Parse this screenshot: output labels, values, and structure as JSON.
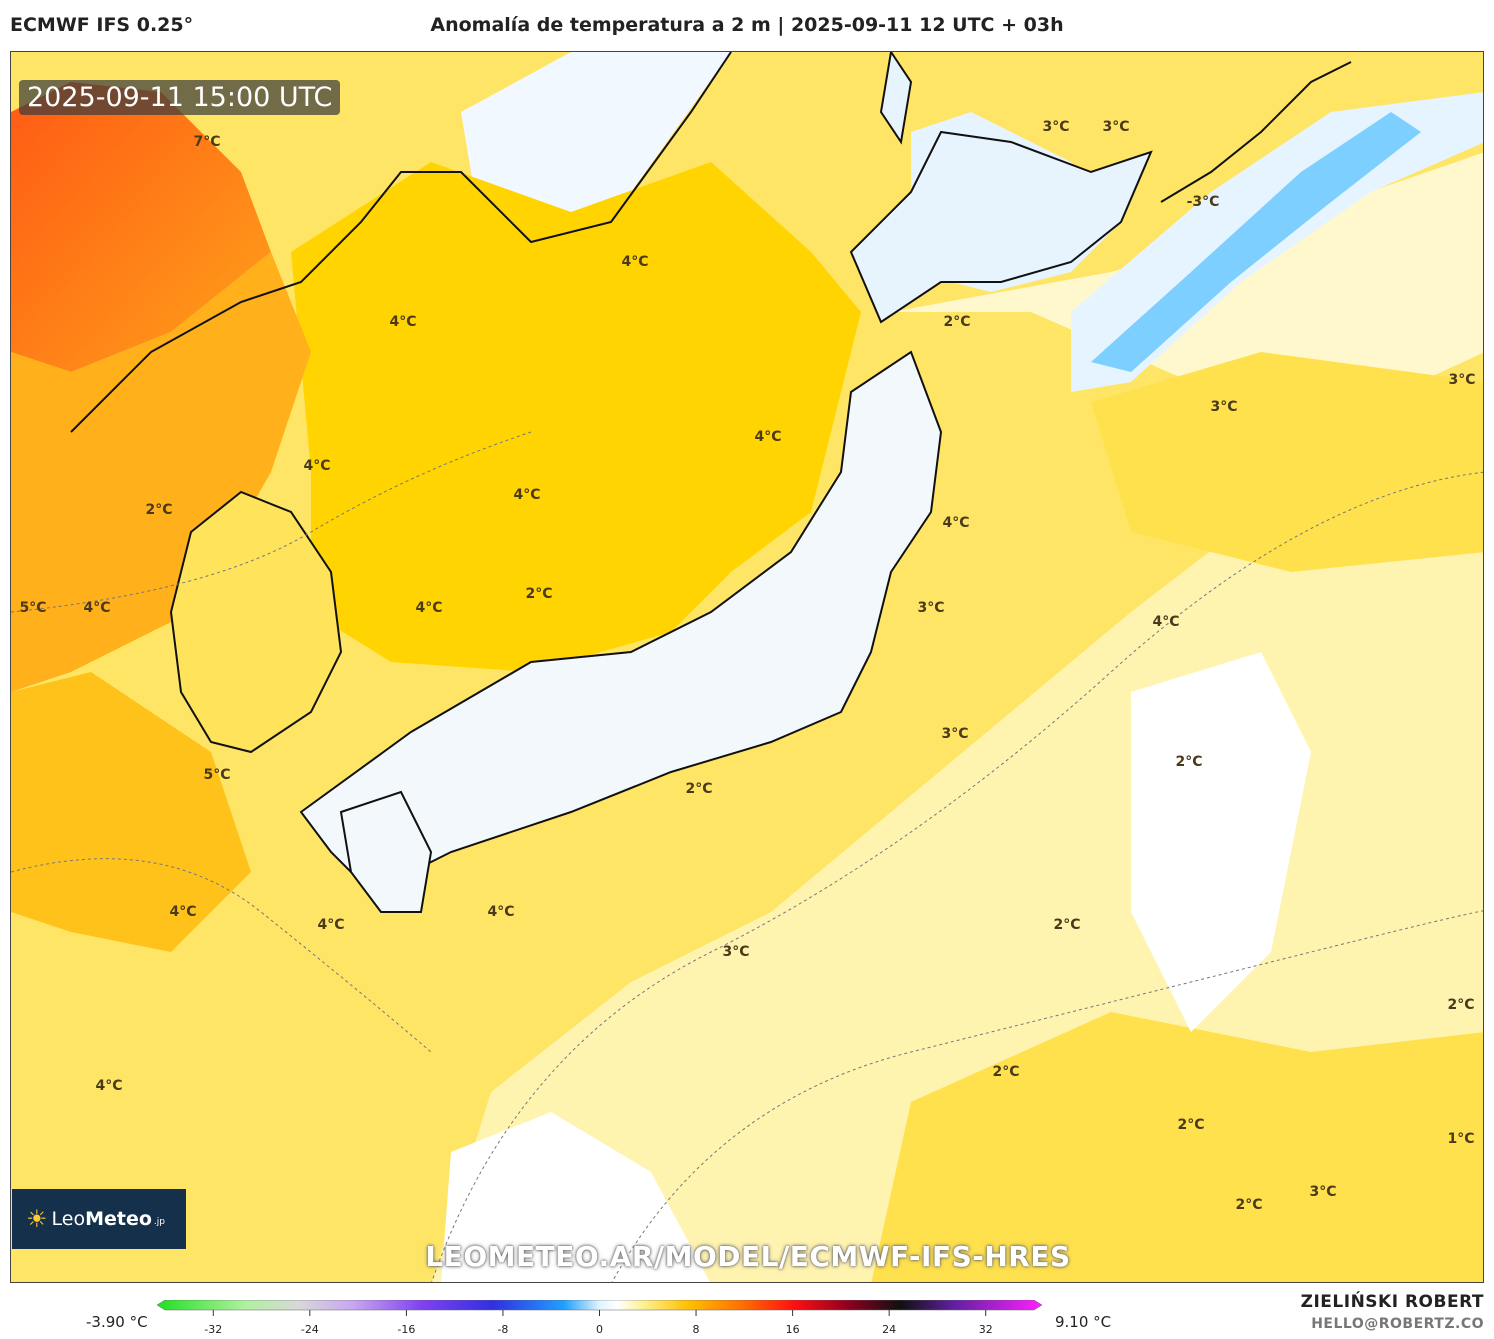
{
  "header": {
    "model": "ECMWF IFS 0.25°",
    "title": "Anomalía de temperatura a 2 m | 2025-09-11 12 UTC + 03h"
  },
  "map": {
    "valid_time": "2025-09-11 15:00 UTC",
    "region": "Japan and surroundings",
    "labels": [
      "7°C",
      "3°C",
      "3°C",
      "-3°C",
      "4°C",
      "4°C",
      "2°C",
      "3°C",
      "3°C",
      "4°C",
      "4°C",
      "4°C",
      "2°C",
      "4°C",
      "5°C",
      "4°C",
      "4°C",
      "2°C",
      "3°C",
      "4°C",
      "3°C",
      "5°C",
      "2°C",
      "2°C",
      "4°C",
      "4°C",
      "4°C",
      "2°C",
      "3°C",
      "2°C",
      "4°C",
      "2°C",
      "2°C",
      "1°C",
      "3°C",
      "2°C"
    ],
    "url_watermark": "LEOMETEO.AR/MODEL/ECMWF-IFS-HRES"
  },
  "logo": {
    "prefix": "Leo",
    "name": "Meteo",
    "suffix": ".jp"
  },
  "colorbar": {
    "min_label": "-3.90 °C",
    "max_label": "9.10 °C",
    "ticks": [
      "-32",
      "-24",
      "-16",
      "-8",
      "0",
      "8",
      "16",
      "24",
      "32"
    ],
    "tick_values": [
      -32,
      -24,
      -16,
      -8,
      0,
      8,
      16,
      24,
      32
    ],
    "range": [
      -36,
      36
    ]
  },
  "credit": {
    "author": "ZIELIŃSKI ROBERT",
    "email": "HELLO@ROBERTZ.CO"
  },
  "colors": {
    "warm_main": "#ffd000",
    "warm_light": "#fff3b0",
    "hot": "#ff7a1a",
    "cool": "#e6f4ff",
    "cold": "#3fb6ff"
  }
}
